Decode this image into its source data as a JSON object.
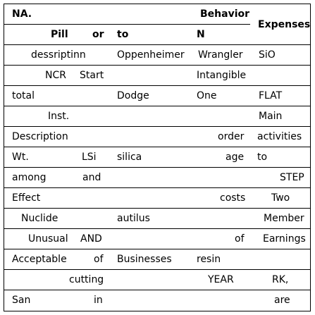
{
  "header": {
    "na": "NA.",
    "behavior": "Behavior",
    "expenses": "Expenses",
    "pill": "Pill",
    "or": "or",
    "to": "to",
    "n": "N"
  },
  "rows": [
    [
      "dessriptinn",
      "Oppenheimer",
      "Wrangler",
      "SiO"
    ],
    [
      "NCR",
      "Start",
      "Intangible"
    ],
    [
      "total",
      "Dodge",
      "One",
      "FLAT"
    ],
    [
      "Inst.",
      "Main"
    ],
    [
      "Description",
      "order",
      "activities"
    ],
    [
      "Wt.",
      "LSi",
      "silica",
      "age",
      "to"
    ],
    [
      "among",
      "and",
      "STEP"
    ],
    [
      "Effect",
      "costs",
      "Two"
    ],
    [
      "Nuclide",
      "autilus",
      "Member"
    ],
    [
      "Unusual",
      "AND",
      "of",
      "Earnings"
    ],
    [
      "Acceptable",
      "of",
      "Businesses",
      "resin"
    ],
    [
      "cutting",
      "YEAR",
      "RK,"
    ],
    [
      "San",
      "in",
      "are"
    ]
  ]
}
